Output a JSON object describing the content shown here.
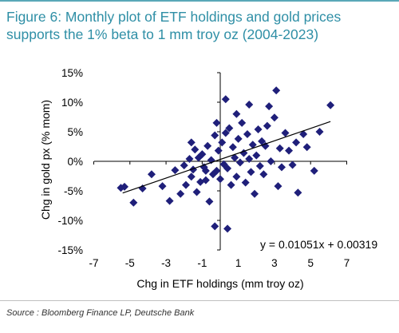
{
  "title": "Figure 6: Monthly plot of ETF holdings and gold prices supports the 1% beta to 1 mm troy oz (2004-2023)",
  "source": "Source : Bloomberg Finance LP, Deutsche Bank",
  "colors": {
    "title": "#2f8fa6",
    "marker": "#1f1f7a",
    "line": "#000000"
  },
  "chart_data": {
    "type": "scatter",
    "xlabel": "Chg in ETF holdings (mm troy oz)",
    "ylabel": "Chg in gold px (% mom)",
    "xlim": [
      -7,
      7
    ],
    "ylim": [
      -15,
      15
    ],
    "x_ticks": [
      -7,
      -5,
      -3,
      -1,
      1,
      3,
      5,
      7
    ],
    "y_ticks": [
      15,
      10,
      5,
      0,
      -5,
      -10,
      -15
    ],
    "x_tick_labels": [
      "-7",
      "-5",
      "-3",
      "-1",
      "1",
      "3",
      "5",
      "7"
    ],
    "y_tick_labels": [
      "15%",
      "10%",
      "5%",
      "0%",
      "-5%",
      "-10%",
      "-15%"
    ],
    "trendline": {
      "slope": 0.01051,
      "intercept": 0.00319,
      "x_range": [
        -5.4,
        6.1
      ]
    },
    "equation": "y = 0.01051x + 0.00319",
    "marker": "diamond",
    "points": [
      [
        -5.5,
        -4.5
      ],
      [
        -5.3,
        -4.3
      ],
      [
        -4.8,
        -7.0
      ],
      [
        -4.3,
        -4.6
      ],
      [
        -3.8,
        -2.2
      ],
      [
        -3.2,
        -4.2
      ],
      [
        -2.8,
        -6.7
      ],
      [
        -2.5,
        -1.5
      ],
      [
        -2.2,
        -5.5
      ],
      [
        -2.0,
        -0.7
      ],
      [
        -1.9,
        -4.0
      ],
      [
        -1.7,
        0.4
      ],
      [
        -1.6,
        -2.6
      ],
      [
        -1.5,
        -1.4
      ],
      [
        -1.4,
        2.0
      ],
      [
        -1.3,
        -5.2
      ],
      [
        -1.2,
        0.6
      ],
      [
        -1.1,
        -3.5
      ],
      [
        -1.0,
        1.2
      ],
      [
        -0.9,
        -1.0
      ],
      [
        -0.8,
        -3.2
      ],
      [
        -0.7,
        2.6
      ],
      [
        -0.6,
        -6.8
      ],
      [
        -0.5,
        0.2
      ],
      [
        -0.4,
        -2.2
      ],
      [
        -0.3,
        4.4
      ],
      [
        -0.2,
        -1.6
      ],
      [
        -0.1,
        1.8
      ],
      [
        0.0,
        -3.0
      ],
      [
        0.1,
        3.2
      ],
      [
        0.2,
        -0.5
      ],
      [
        0.3,
        10.5
      ],
      [
        0.4,
        -1.2
      ],
      [
        0.5,
        5.6
      ],
      [
        0.6,
        -4.0
      ],
      [
        0.7,
        2.4
      ],
      [
        0.8,
        0.6
      ],
      [
        0.9,
        -2.6
      ],
      [
        1.0,
        3.8
      ],
      [
        1.1,
        -0.2
      ],
      [
        1.2,
        6.5
      ],
      [
        1.3,
        1.4
      ],
      [
        1.4,
        -3.6
      ],
      [
        1.5,
        4.6
      ],
      [
        1.6,
        0.4
      ],
      [
        1.7,
        -1.8
      ],
      [
        1.8,
        2.8
      ],
      [
        1.9,
        -5.5
      ],
      [
        2.0,
        1.0
      ],
      [
        2.1,
        5.4
      ],
      [
        2.2,
        -0.8
      ],
      [
        2.3,
        3.4
      ],
      [
        2.4,
        -2.2
      ],
      [
        2.6,
        6.0
      ],
      [
        2.8,
        0.0
      ],
      [
        3.0,
        7.4
      ],
      [
        3.1,
        12.0
      ],
      [
        3.2,
        -4.2
      ],
      [
        3.3,
        2.2
      ],
      [
        3.4,
        -1.0
      ],
      [
        3.6,
        4.8
      ],
      [
        3.8,
        1.8
      ],
      [
        4.0,
        -0.6
      ],
      [
        4.2,
        3.2
      ],
      [
        4.3,
        -5.3
      ],
      [
        4.6,
        4.6
      ],
      [
        4.8,
        2.4
      ],
      [
        5.2,
        -1.6
      ],
      [
        5.5,
        5.0
      ],
      [
        6.1,
        9.5
      ],
      [
        0.9,
        8.0
      ],
      [
        2.7,
        9.3
      ],
      [
        1.6,
        9.6
      ],
      [
        -0.3,
        -11.0
      ],
      [
        0.4,
        -11.4
      ],
      [
        -0.8,
        -1.6
      ],
      [
        -0.2,
        6.5
      ],
      [
        0.3,
        4.8
      ],
      [
        2.5,
        2.6
      ],
      [
        -1.6,
        3.2
      ]
    ]
  }
}
